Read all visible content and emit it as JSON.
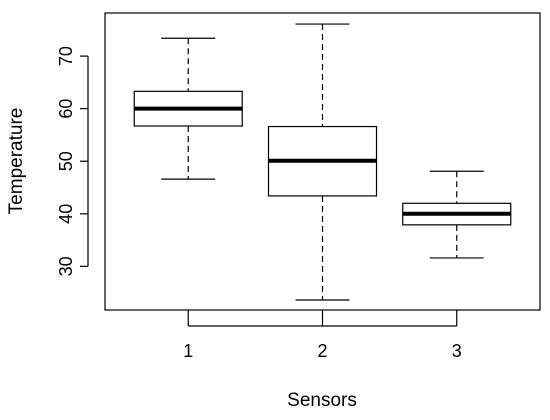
{
  "chart_data": {
    "type": "box",
    "xlabel": "Sensors",
    "ylabel": "Temperature",
    "categories": [
      "1",
      "2",
      "3"
    ],
    "yticks": [
      30,
      40,
      50,
      60,
      70
    ],
    "ylim": [
      21.7,
      78.2
    ],
    "grid": false,
    "legend": "none",
    "boxes": [
      {
        "name": "1",
        "min": 46.6,
        "q1": 56.7,
        "median": 60.0,
        "q3": 63.3,
        "max": 73.4
      },
      {
        "name": "2",
        "min": 23.6,
        "q1": 43.4,
        "median": 50.1,
        "q3": 56.6,
        "max": 76.1
      },
      {
        "name": "3",
        "min": 31.6,
        "q1": 37.9,
        "median": 40.0,
        "q3": 42.0,
        "max": 48.1
      }
    ]
  }
}
